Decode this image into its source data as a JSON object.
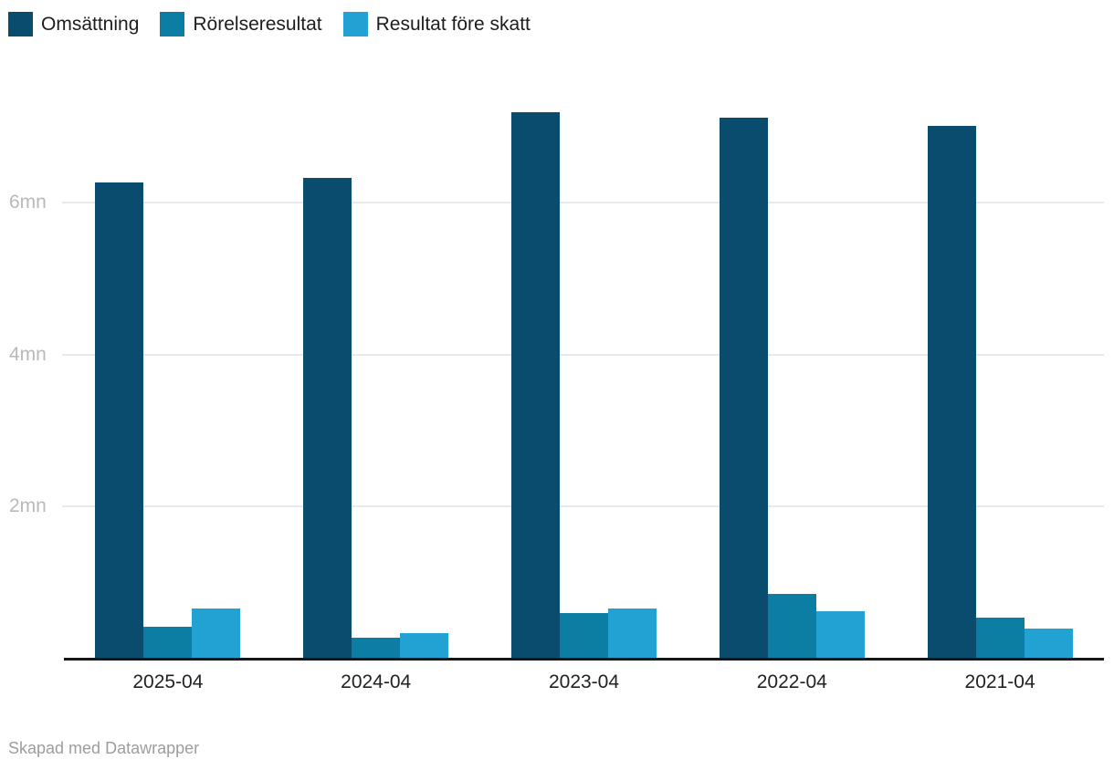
{
  "chart_data": {
    "type": "bar",
    "title": "",
    "unit": "mn",
    "categories": [
      "2025-04",
      "2024-04",
      "2023-04",
      "2022-04",
      "2021-04"
    ],
    "series": [
      {
        "name": "Omsättning",
        "color": "#0a4c6e",
        "values": [
          6.27,
          6.32,
          7.19,
          7.12,
          7.01
        ]
      },
      {
        "name": "Rörelseresultat",
        "color": "#0d7ea3",
        "values": [
          0.42,
          0.28,
          0.6,
          0.85,
          0.54
        ]
      },
      {
        "name": "Resultat före skatt",
        "color": "#22a2d2",
        "values": [
          0.66,
          0.34,
          0.66,
          0.63,
          0.4
        ]
      }
    ],
    "y_ticks": [
      {
        "value": 2,
        "label": "2mn"
      },
      {
        "value": 4,
        "label": "4mn"
      },
      {
        "value": 6,
        "label": "6mn"
      }
    ],
    "ylim": [
      0,
      7.7
    ],
    "xlabel": "",
    "ylabel": "",
    "grid": true,
    "legend_position": "top-left"
  },
  "colors": {
    "background": "#ffffff",
    "gridline": "#e9e9e9",
    "axis_line": "#161616",
    "y_tick_text": "#b9b9b9",
    "x_tick_text": "#222222",
    "legend_text": "#1d1d1d",
    "footer_text": "#9d9d9d"
  },
  "footer": {
    "credit": "Skapad med Datawrapper"
  }
}
